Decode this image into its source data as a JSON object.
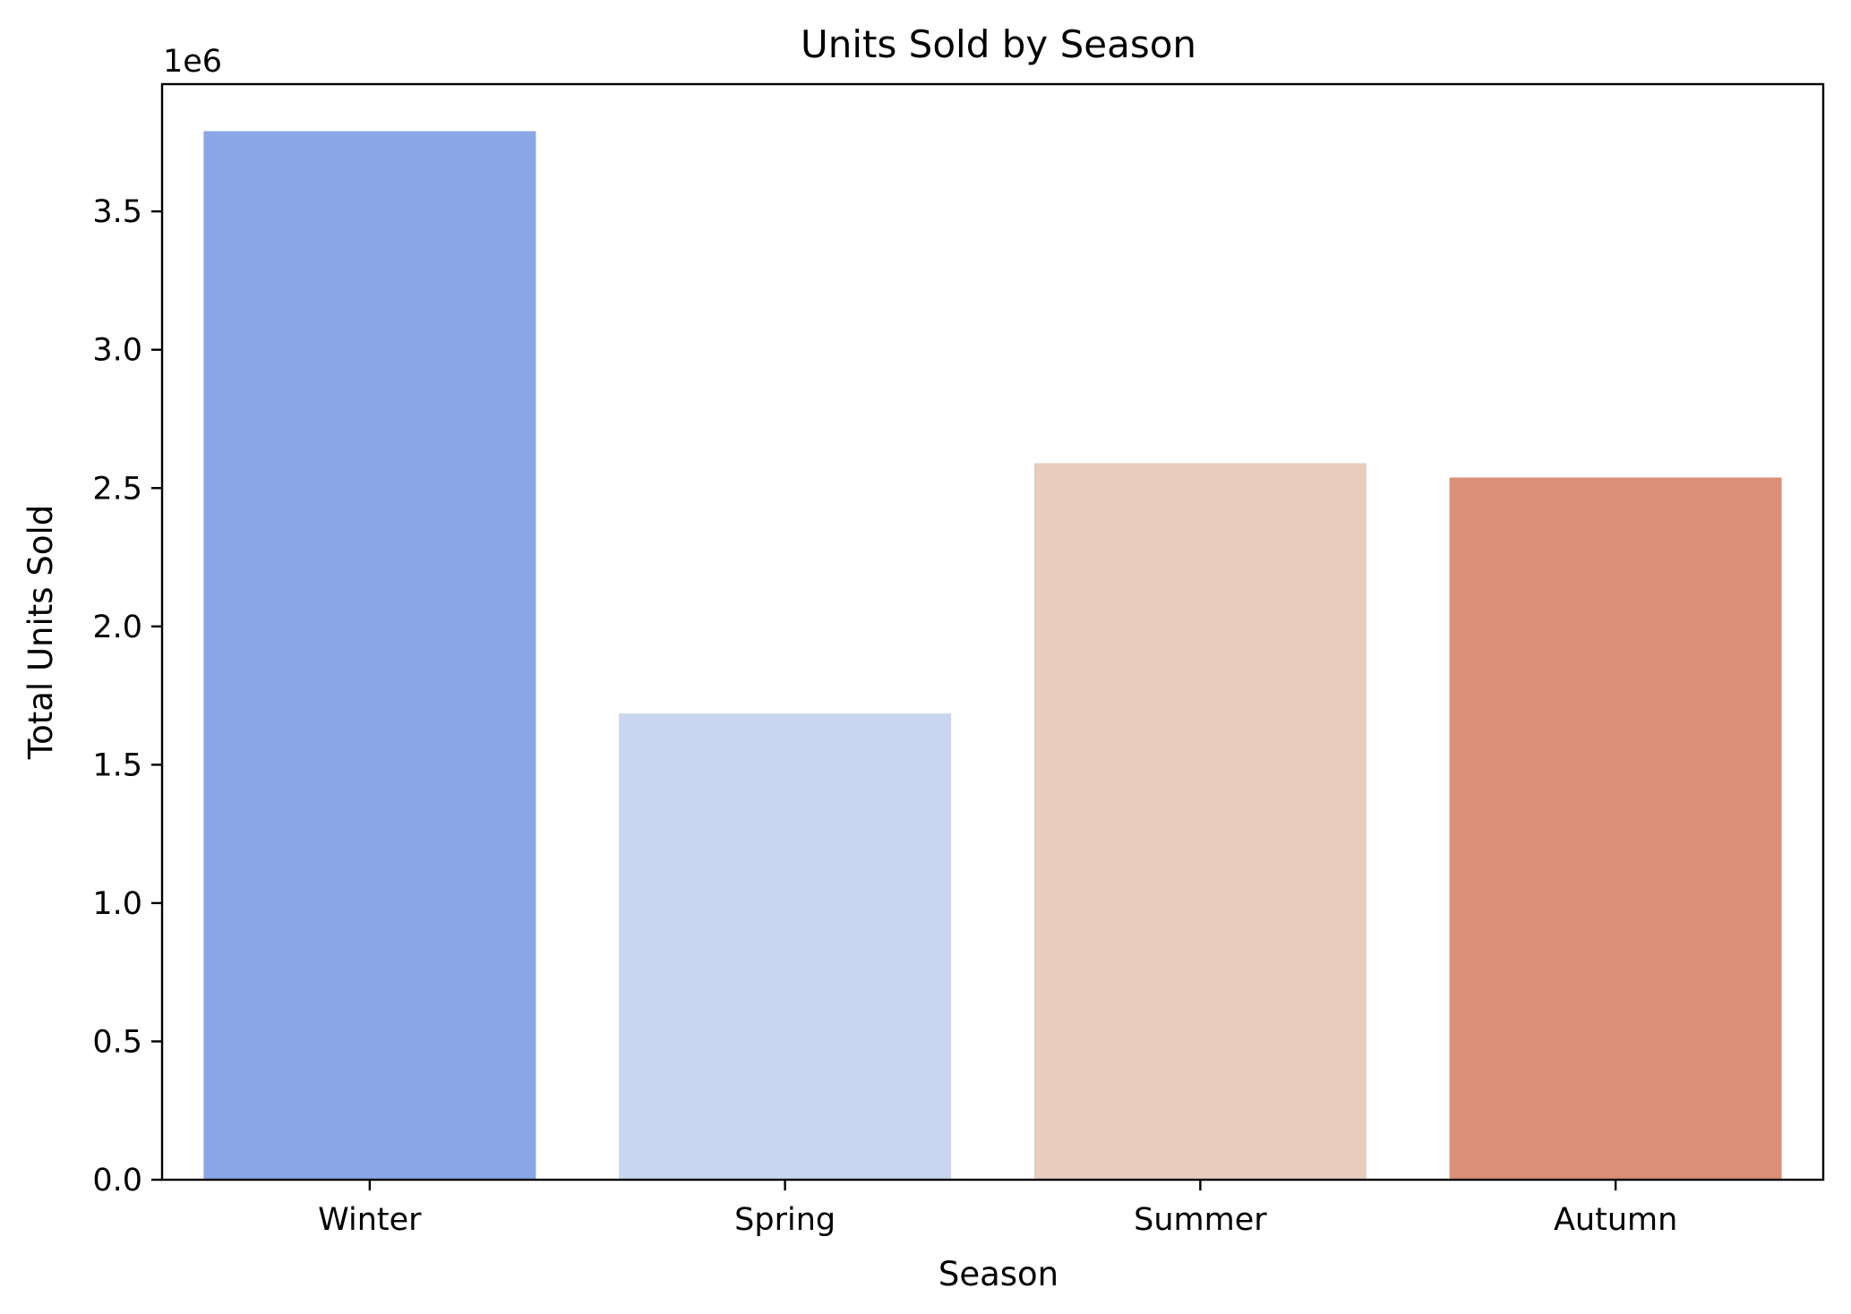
{
  "chart_data": {
    "type": "bar",
    "title": "Units Sold by Season",
    "xlabel": "Season",
    "ylabel": "Total Units Sold",
    "y_scale_label": "1e6",
    "y_scale_factor": 1000000,
    "categories": [
      "Winter",
      "Spring",
      "Summer",
      "Autumn"
    ],
    "values": [
      3790000,
      1685000,
      2590000,
      2538000
    ],
    "colors": [
      "#8aa6e7",
      "#c8d6ef",
      "#e8cdbf",
      "#db8e78"
    ],
    "ylim": [
      0,
      3960000
    ],
    "yticks": [
      0,
      500000,
      1000000,
      1500000,
      2000000,
      2500000,
      3000000,
      3500000
    ],
    "ytick_labels": [
      "0.0",
      "0.5",
      "1.0",
      "1.5",
      "2.0",
      "2.5",
      "3.0",
      "3.5"
    ],
    "grid": false,
    "legend": "none"
  }
}
